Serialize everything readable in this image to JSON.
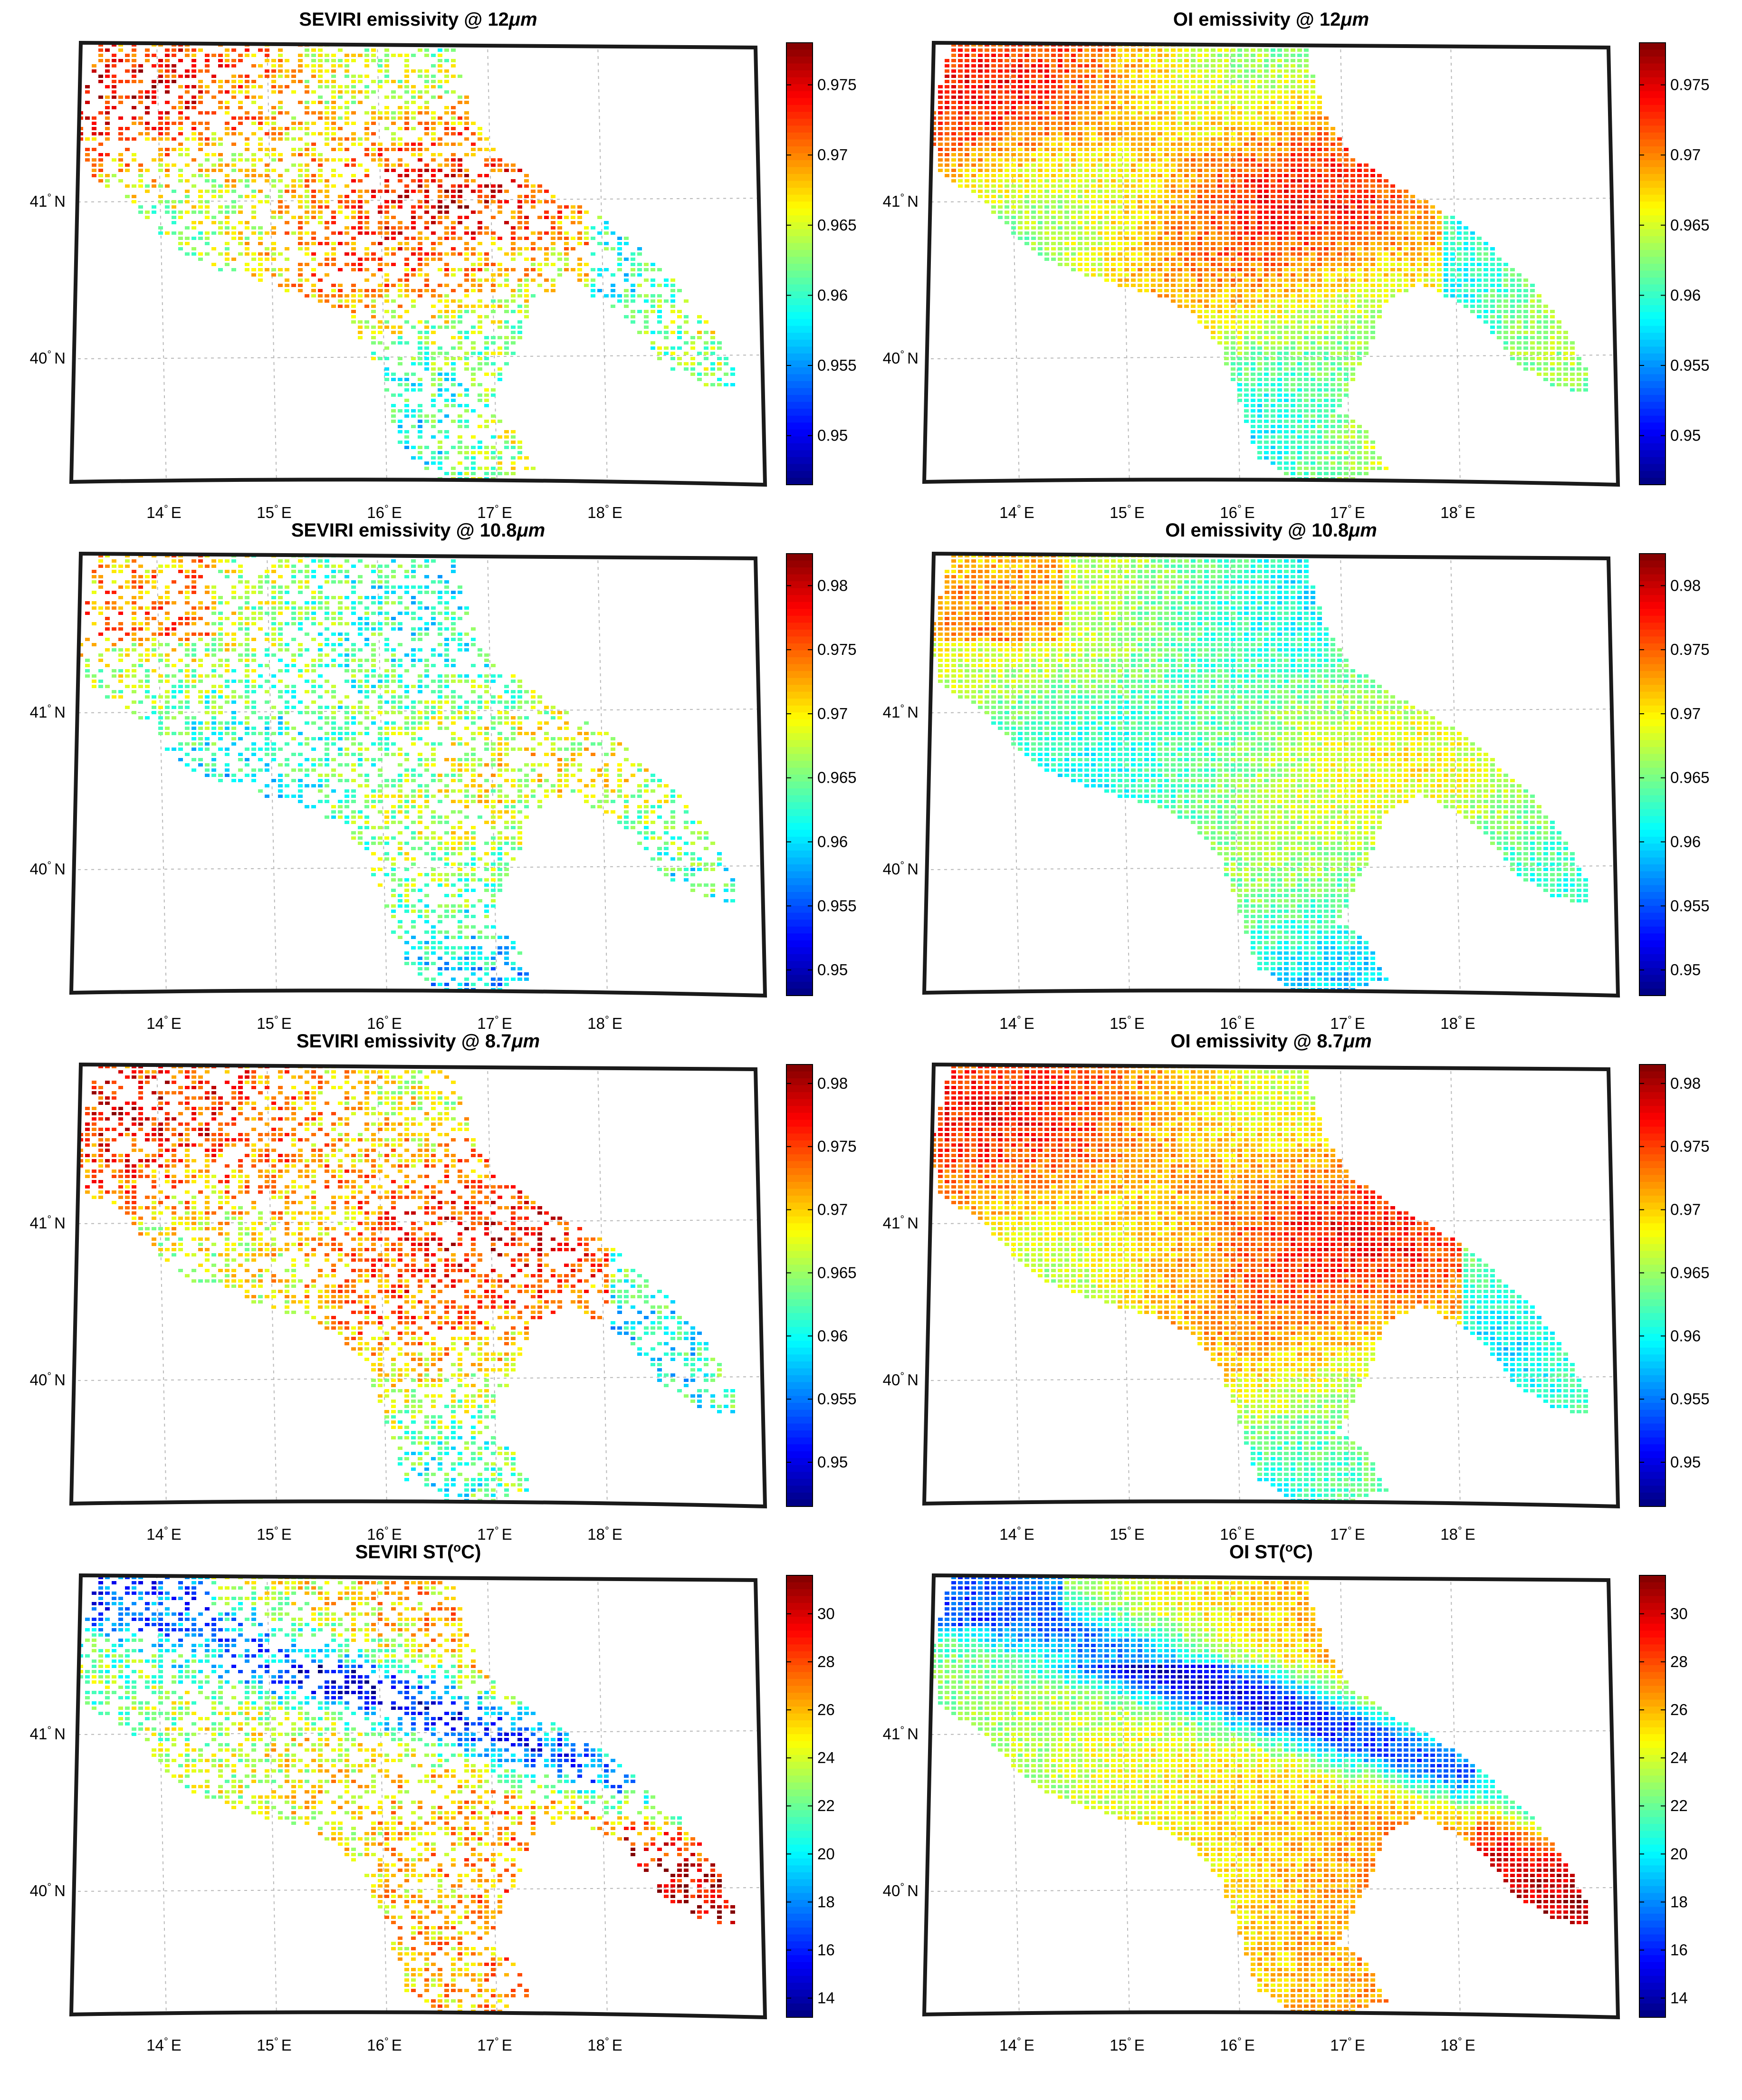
{
  "figure": {
    "panels": [
      {
        "id": "seviri-emis-12",
        "title_main": "SEVIRI emissivity @ 12",
        "title_unit": "μm",
        "title_tail": "",
        "variable": "emissivity",
        "source": "SEVIRI",
        "colorbar": {
          "ticks": [
            "0.95",
            "0.955",
            "0.96",
            "0.965",
            "0.97",
            "0.975"
          ],
          "tick_values": [
            0.95,
            0.955,
            0.96,
            0.965,
            0.97,
            0.975
          ],
          "range": [
            0.9465,
            0.978
          ]
        }
      },
      {
        "id": "oi-emis-12",
        "title_main": "OI emissivity @ 12",
        "title_unit": "μm",
        "title_tail": "",
        "variable": "emissivity",
        "source": "OI",
        "colorbar": {
          "ticks": [
            "0.95",
            "0.955",
            "0.96",
            "0.965",
            "0.97",
            "0.975"
          ],
          "tick_values": [
            0.95,
            0.955,
            0.96,
            0.965,
            0.97,
            0.975
          ],
          "range": [
            0.9465,
            0.978
          ]
        }
      },
      {
        "id": "seviri-emis-108",
        "title_main": "SEVIRI emissivity @ 10.8",
        "title_unit": "μm",
        "title_tail": "",
        "variable": "emissivity",
        "source": "SEVIRI",
        "colorbar": {
          "ticks": [
            "0.95",
            "0.955",
            "0.96",
            "0.965",
            "0.97",
            "0.975",
            "0.98"
          ],
          "tick_values": [
            0.95,
            0.955,
            0.96,
            0.965,
            0.97,
            0.975,
            0.98
          ],
          "range": [
            0.948,
            0.9825
          ]
        }
      },
      {
        "id": "oi-emis-108",
        "title_main": "OI emissivity @ 10.8",
        "title_unit": "μm",
        "title_tail": "",
        "variable": "emissivity",
        "source": "OI",
        "colorbar": {
          "ticks": [
            "0.95",
            "0.955",
            "0.96",
            "0.965",
            "0.97",
            "0.975",
            "0.98"
          ],
          "tick_values": [
            0.95,
            0.955,
            0.96,
            0.965,
            0.97,
            0.975,
            0.98
          ],
          "range": [
            0.948,
            0.9825
          ]
        }
      },
      {
        "id": "seviri-emis-87",
        "title_main": "SEVIRI emissivity @ 8.7",
        "title_unit": "μm",
        "title_tail": "",
        "variable": "emissivity",
        "source": "SEVIRI",
        "colorbar": {
          "ticks": [
            "0.95",
            "0.955",
            "0.96",
            "0.965",
            "0.97",
            "0.975",
            "0.98"
          ],
          "tick_values": [
            0.95,
            0.955,
            0.96,
            0.965,
            0.97,
            0.975,
            0.98
          ],
          "range": [
            0.9465,
            0.9815
          ]
        }
      },
      {
        "id": "oi-emis-87",
        "title_main": "OI emissivity @ 8.7",
        "title_unit": "μm",
        "title_tail": "",
        "variable": "emissivity",
        "source": "OI",
        "colorbar": {
          "ticks": [
            "0.95",
            "0.955",
            "0.96",
            "0.965",
            "0.97",
            "0.975",
            "0.98"
          ],
          "tick_values": [
            0.95,
            0.955,
            0.96,
            0.965,
            0.97,
            0.975,
            0.98
          ],
          "range": [
            0.9465,
            0.9815
          ]
        }
      },
      {
        "id": "seviri-st",
        "title_main": "SEVIRI ST(",
        "title_unit": "o",
        "title_tail": "C)",
        "variable": "surface_temperature",
        "source": "SEVIRI",
        "colorbar": {
          "ticks": [
            "14",
            "16",
            "18",
            "20",
            "22",
            "24",
            "26",
            "28",
            "30"
          ],
          "tick_values": [
            14,
            16,
            18,
            20,
            22,
            24,
            26,
            28,
            30
          ],
          "range": [
            13.2,
            31.6
          ]
        }
      },
      {
        "id": "oi-st",
        "title_main": "OI ST(",
        "title_unit": "o",
        "title_tail": "C)",
        "variable": "surface_temperature",
        "source": "OI",
        "colorbar": {
          "ticks": [
            "14",
            "16",
            "18",
            "20",
            "22",
            "24",
            "26",
            "28",
            "30"
          ],
          "tick_values": [
            14,
            16,
            18,
            20,
            22,
            24,
            26,
            28,
            30
          ],
          "range": [
            13.2,
            31.6
          ]
        }
      }
    ],
    "lat_labels": [
      {
        "deg": "41",
        "sup": "°",
        "hem": "N",
        "lat": 41
      },
      {
        "deg": "40",
        "sup": "°",
        "hem": "N",
        "lat": 40
      }
    ],
    "lon_labels": [
      {
        "deg": "14",
        "sup": "°",
        "hem": "E",
        "lon": 14
      },
      {
        "deg": "15",
        "sup": "°",
        "hem": "E",
        "lon": 15
      },
      {
        "deg": "16",
        "sup": "°",
        "hem": "E",
        "lon": 16
      },
      {
        "deg": "17",
        "sup": "°",
        "hem": "E",
        "lon": 17
      },
      {
        "deg": "18",
        "sup": "°",
        "hem": "E",
        "lon": 18
      }
    ],
    "colormap": "jet"
  }
}
